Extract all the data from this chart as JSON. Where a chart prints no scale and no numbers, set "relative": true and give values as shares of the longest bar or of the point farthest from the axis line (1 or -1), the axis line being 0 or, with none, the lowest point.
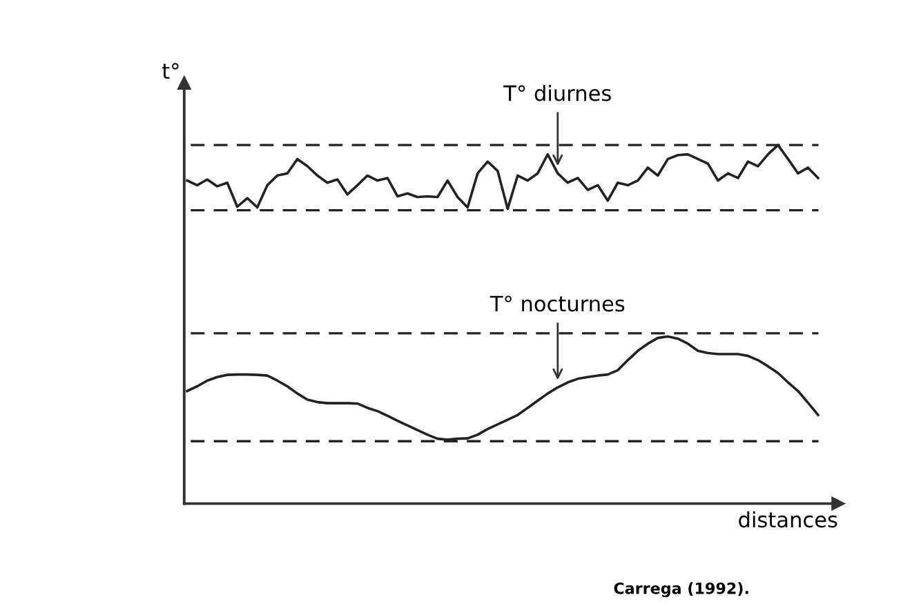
{
  "chart_data": {
    "type": "line",
    "relative": true,
    "xlabel": "distances",
    "ylabel": "t°",
    "categories": [
      null,
      null,
      null,
      null,
      null,
      null,
      null,
      null,
      null,
      null,
      null,
      null,
      null,
      null,
      null,
      null,
      null,
      null,
      null,
      null,
      null,
      null,
      null,
      null,
      null,
      null,
      null,
      null,
      null,
      null,
      null,
      null,
      null,
      null,
      null,
      null,
      null,
      null,
      null,
      null,
      null,
      null,
      null,
      null,
      null,
      null,
      null,
      null,
      null,
      null,
      null,
      null,
      null,
      null,
      null,
      null,
      null,
      null,
      null,
      null,
      null,
      null,
      null,
      null
    ],
    "series": [
      {
        "color": "#222222",
        "values": [
          0.901,
          0.888,
          0.904,
          0.885,
          0.895,
          0.828,
          0.852,
          0.826,
          0.888,
          0.915,
          0.921,
          0.961,
          0.941,
          0.915,
          0.895,
          0.904,
          0.862,
          0.888,
          0.915,
          0.901,
          0.908,
          0.857,
          0.865,
          0.855,
          0.857,
          0.855,
          0.901,
          0.855,
          0.826,
          0.921,
          0.954,
          0.928,
          0.822,
          0.915,
          0.901,
          0.921,
          0.974,
          0.921,
          0.895,
          0.908,
          0.875,
          0.888,
          0.845,
          0.895,
          0.888,
          0.901,
          0.937,
          0.915,
          0.961,
          0.972,
          0.974,
          0.961,
          0.948,
          0.901,
          0.921,
          0.908,
          0.954,
          0.941,
          0.974,
          1.0,
          0.961,
          0.921,
          0.937,
          0.908
        ]
      },
      {
        "color": "#222222",
        "values": [
          0.314,
          0.327,
          0.343,
          0.353,
          0.359,
          0.36,
          0.36,
          0.359,
          0.357,
          0.343,
          0.327,
          0.307,
          0.29,
          0.283,
          0.28,
          0.28,
          0.28,
          0.279,
          0.267,
          0.258,
          0.245,
          0.231,
          0.218,
          0.205,
          0.192,
          0.181,
          0.178,
          0.181,
          0.182,
          0.192,
          0.208,
          0.221,
          0.234,
          0.247,
          0.267,
          0.287,
          0.307,
          0.324,
          0.338,
          0.348,
          0.353,
          0.357,
          0.36,
          0.372,
          0.4,
          0.426,
          0.446,
          0.462,
          0.466,
          0.46,
          0.446,
          0.426,
          0.42,
          0.417,
          0.417,
          0.417,
          0.412,
          0.4,
          0.383,
          0.364,
          0.338,
          0.314,
          0.281,
          0.247
        ]
      }
    ],
    "ref_lines": [
      {
        "axis": "y",
        "value": 1.0,
        "color": "#222222",
        "line_style": "dashed"
      },
      {
        "axis": "y",
        "value": 0.818,
        "color": "#222222",
        "line_style": "dashed"
      },
      {
        "axis": "y",
        "value": 0.475,
        "color": "#222222",
        "line_style": "dashed"
      },
      {
        "axis": "y",
        "value": 0.174,
        "color": "#222222",
        "line_style": "dashed"
      }
    ],
    "annotations": [
      "T° diurnes",
      "T° nocturnes",
      "Carrega (1992)."
    ],
    "line_style": "solid",
    "marker": "none",
    "legend": false
  }
}
